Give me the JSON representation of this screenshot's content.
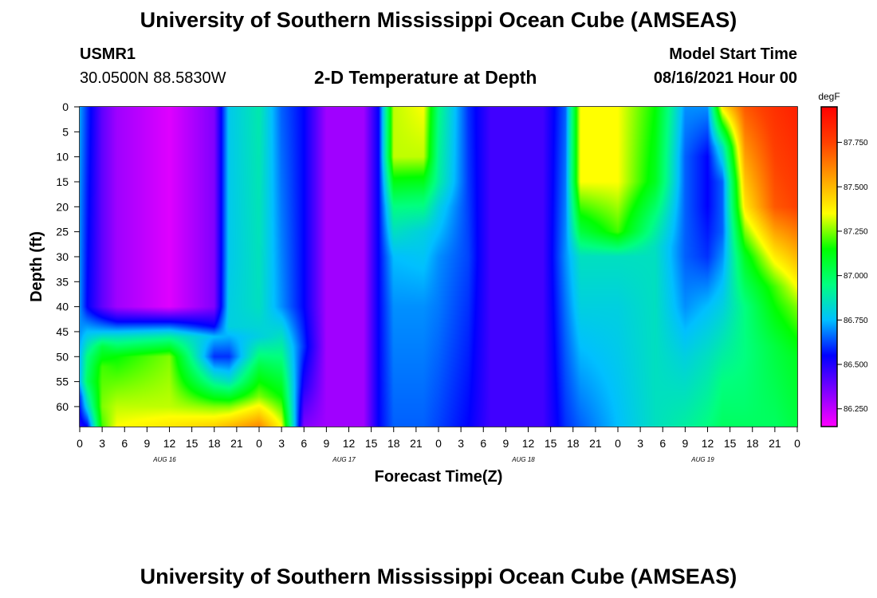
{
  "header": {
    "title": "University of Southern Mississippi Ocean Cube (AMSEAS)",
    "station_id": "USMR1",
    "location": "30.0500N  88.5830W",
    "product": "2-D Temperature at Depth",
    "model_start_label": "Model Start Time",
    "model_start_value": "08/16/2021 Hour 00"
  },
  "footer": {
    "title": "University of Southern Mississippi Ocean Cube (AMSEAS)"
  },
  "chart_data": {
    "type": "heatmap",
    "title": "2-D Temperature at Depth",
    "xlabel": "Forecast Time(Z)",
    "ylabel": "Depth (ft)",
    "x_hours_range": [
      0,
      96
    ],
    "x_tick_labels": [
      "0",
      "3",
      "6",
      "9",
      "12",
      "15",
      "18",
      "21",
      "0",
      "3",
      "6",
      "9",
      "12",
      "15",
      "18",
      "21",
      "0",
      "3",
      "6",
      "9",
      "12",
      "15",
      "18",
      "21",
      "0",
      "3",
      "6",
      "9",
      "12",
      "15",
      "18",
      "21",
      "0"
    ],
    "date_labels": [
      {
        "label": "AUG 16",
        "hour": 12
      },
      {
        "label": "AUG 17",
        "hour": 36
      },
      {
        "label": "AUG 18",
        "hour": 60
      },
      {
        "label": "AUG 19",
        "hour": 84
      }
    ],
    "ylim": [
      0,
      64
    ],
    "y_tick_labels": [
      "0",
      "5",
      "10",
      "15",
      "20",
      "25",
      "30",
      "35",
      "40",
      "45",
      "50",
      "55",
      "60"
    ],
    "colorbar": {
      "unit": "degF",
      "range": [
        86.15,
        87.95
      ],
      "ticks": [
        "86.250",
        "86.500",
        "86.750",
        "87.000",
        "87.250",
        "87.500",
        "87.750"
      ],
      "colors": [
        "#ff00ff",
        "#8000ff",
        "#0000ff",
        "#00c0ff",
        "#00ff80",
        "#00ff00",
        "#ffff00",
        "#ffa000",
        "#ff4000",
        "#ff0000"
      ]
    },
    "time_profiles": [
      {
        "hour": 0,
        "depths": [
          0,
          20,
          45,
          50,
          55,
          58,
          64
        ],
        "temps": [
          86.72,
          86.7,
          86.7,
          86.75,
          86.75,
          86.6,
          86.5
        ]
      },
      {
        "hour": 1,
        "depths": [
          0,
          40,
          45,
          50,
          55,
          60,
          64
        ],
        "temps": [
          86.6,
          86.55,
          86.75,
          86.95,
          87.0,
          86.8,
          86.55
        ]
      },
      {
        "hour": 3,
        "depths": [
          0,
          40,
          45,
          48,
          52,
          60,
          64
        ],
        "temps": [
          86.4,
          86.4,
          86.75,
          87.05,
          87.2,
          87.25,
          87.2
        ]
      },
      {
        "hour": 5,
        "depths": [
          0,
          40,
          43,
          46,
          50,
          60,
          64
        ],
        "temps": [
          86.3,
          86.3,
          86.55,
          86.85,
          87.15,
          87.3,
          87.35
        ]
      },
      {
        "hour": 12,
        "depths": [
          0,
          40,
          43,
          46,
          50,
          60,
          64
        ],
        "temps": [
          86.2,
          86.2,
          86.55,
          86.9,
          87.25,
          87.3,
          87.4
        ]
      },
      {
        "hour": 18,
        "depths": [
          0,
          40,
          44,
          46,
          50,
          55,
          60,
          64
        ],
        "temps": [
          86.35,
          86.35,
          86.55,
          86.75,
          86.6,
          86.9,
          87.25,
          87.45
        ]
      },
      {
        "hour": 20,
        "depths": [
          0,
          30,
          44,
          50,
          55,
          60,
          64
        ],
        "temps": [
          86.78,
          86.78,
          86.8,
          86.6,
          86.85,
          87.25,
          87.5
        ]
      },
      {
        "hour": 24,
        "depths": [
          0,
          40,
          46,
          52,
          58,
          64
        ],
        "temps": [
          86.88,
          86.85,
          86.8,
          87.05,
          87.25,
          87.6
        ]
      },
      {
        "hour": 27,
        "depths": [
          0,
          40,
          46,
          52,
          58,
          64
        ],
        "temps": [
          86.65,
          86.7,
          86.85,
          87.0,
          87.15,
          87.35
        ]
      },
      {
        "hour": 30,
        "depths": [
          0,
          40,
          48,
          56,
          64
        ],
        "temps": [
          86.55,
          86.55,
          86.6,
          86.5,
          86.35
        ]
      },
      {
        "hour": 33,
        "depths": [
          0,
          64
        ],
        "temps": [
          86.3,
          86.3
        ]
      },
      {
        "hour": 38,
        "depths": [
          0,
          64
        ],
        "temps": [
          86.3,
          86.3
        ]
      },
      {
        "hour": 40,
        "depths": [
          0,
          64
        ],
        "temps": [
          86.55,
          86.55
        ]
      },
      {
        "hour": 42,
        "depths": [
          0,
          10,
          20,
          30,
          40,
          64
        ],
        "temps": [
          87.3,
          87.3,
          86.95,
          86.75,
          86.7,
          86.65
        ]
      },
      {
        "hour": 46,
        "depths": [
          0,
          10,
          18,
          25,
          40,
          64
        ],
        "temps": [
          87.35,
          87.3,
          87.0,
          86.8,
          86.7,
          86.65
        ]
      },
      {
        "hour": 48,
        "depths": [
          0,
          15,
          20,
          30,
          64
        ],
        "temps": [
          86.95,
          86.9,
          86.8,
          86.7,
          86.62
        ]
      },
      {
        "hour": 52,
        "depths": [
          0,
          30,
          64
        ],
        "temps": [
          86.6,
          86.62,
          86.55
        ]
      },
      {
        "hour": 55,
        "depths": [
          0,
          64
        ],
        "temps": [
          86.45,
          86.45
        ]
      },
      {
        "hour": 62,
        "depths": [
          0,
          64
        ],
        "temps": [
          86.45,
          86.45
        ]
      },
      {
        "hour": 65,
        "depths": [
          0,
          30,
          64
        ],
        "temps": [
          86.65,
          86.7,
          86.6
        ]
      },
      {
        "hour": 67,
        "depths": [
          0,
          15,
          25,
          30,
          40,
          64
        ],
        "temps": [
          87.35,
          87.35,
          87.05,
          86.85,
          86.8,
          86.65
        ]
      },
      {
        "hour": 72,
        "depths": [
          0,
          15,
          25,
          30,
          40,
          64
        ],
        "temps": [
          87.35,
          87.35,
          87.2,
          86.85,
          86.8,
          86.75
        ]
      },
      {
        "hour": 77,
        "depths": [
          0,
          15,
          22,
          28,
          40,
          64
        ],
        "temps": [
          87.15,
          87.1,
          86.95,
          86.85,
          86.85,
          86.85
        ]
      },
      {
        "hour": 81,
        "depths": [
          0,
          10,
          20,
          30,
          40,
          50,
          64
        ],
        "temps": [
          86.7,
          86.65,
          86.65,
          86.65,
          86.7,
          86.8,
          86.9
        ]
      },
      {
        "hour": 84,
        "depths": [
          0,
          10,
          20,
          30,
          40,
          50,
          64
        ],
        "temps": [
          86.7,
          86.55,
          86.55,
          86.6,
          86.75,
          86.85,
          86.95
        ]
      },
      {
        "hour": 86,
        "depths": [
          0,
          8,
          15,
          25,
          35,
          45,
          55,
          64
        ],
        "temps": [
          87.4,
          86.85,
          86.65,
          86.65,
          86.75,
          86.85,
          86.95,
          87.0
        ]
      },
      {
        "hour": 89,
        "depths": [
          0,
          20,
          30,
          40,
          50,
          60,
          64
        ],
        "temps": [
          87.7,
          87.4,
          87.1,
          86.95,
          86.95,
          86.98,
          87.0
        ]
      },
      {
        "hour": 93,
        "depths": [
          0,
          20,
          28,
          36,
          48,
          64
        ],
        "temps": [
          87.8,
          87.7,
          87.45,
          87.2,
          87.05,
          87.0
        ]
      },
      {
        "hour": 96,
        "depths": [
          0,
          20,
          30,
          40,
          50,
          64
        ],
        "temps": [
          87.85,
          87.75,
          87.5,
          87.25,
          87.1,
          87.05
        ]
      }
    ]
  }
}
